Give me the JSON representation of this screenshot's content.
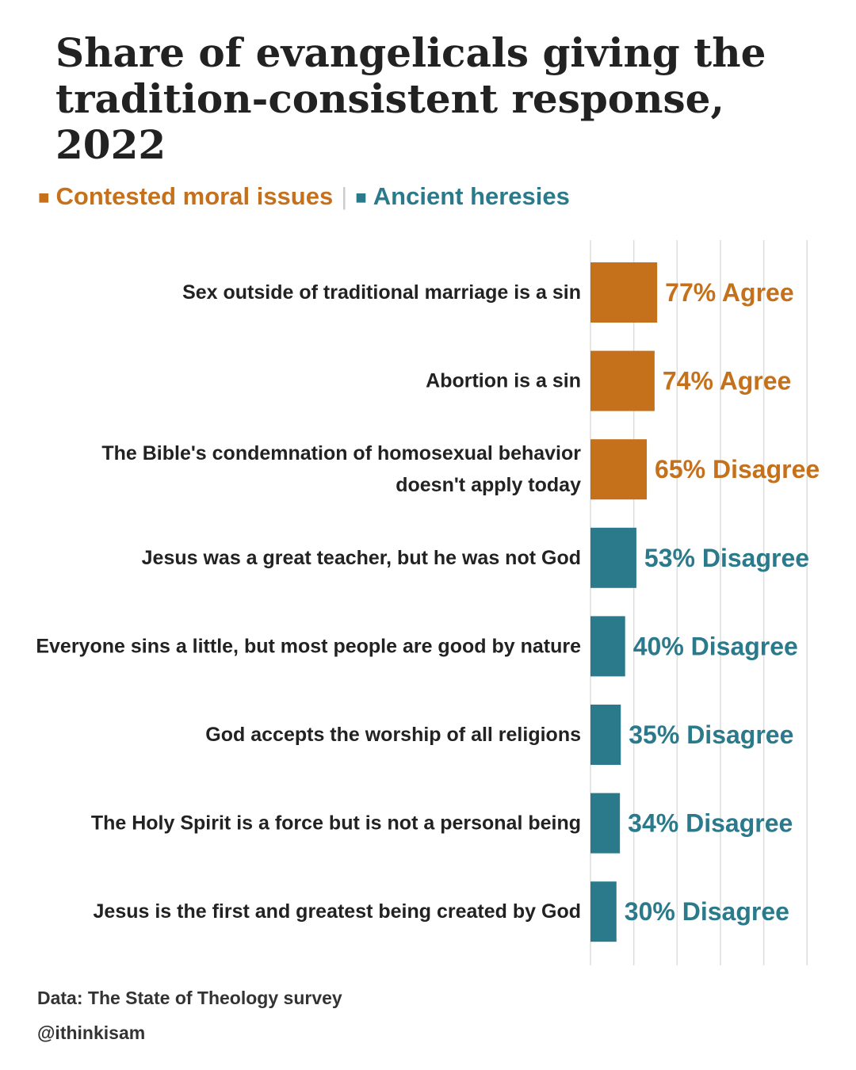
{
  "chart_data": {
    "type": "bar",
    "orientation": "horizontal",
    "title": "Share of evangelicals giving the tradition-consistent response, 2022",
    "categories": [
      "Sex outside of traditional marriage is a sin",
      "Abortion is a sin",
      "The Bible's condemnation of homosexual behavior doesn't apply today",
      "Jesus was a great teacher, but he was not God",
      "Everyone sins a little, but most people are good by nature",
      "God accepts the worship of all religions",
      "The Holy Spirit is a force but is not a personal being",
      "Jesus is the first and greatest being created by God"
    ],
    "category_lines": [
      [
        "Sex outside of traditional marriage is a sin"
      ],
      [
        "Abortion is a sin"
      ],
      [
        "The Bible's condemnation of homosexual behavior",
        "doesn't apply today"
      ],
      [
        "Jesus was a great teacher, but he was not God"
      ],
      [
        "Everyone sins a little, but most people are good by nature"
      ],
      [
        "God accepts the worship of all religions"
      ],
      [
        "The Holy Spirit is a force but is not a personal being"
      ],
      [
        "Jesus is the first and greatest being created by God"
      ]
    ],
    "values": [
      77,
      74,
      65,
      53,
      40,
      35,
      34,
      30
    ],
    "groups": [
      "moral",
      "moral",
      "moral",
      "heresy",
      "heresy",
      "heresy",
      "heresy",
      "heresy"
    ],
    "data_labels": [
      "77% Agree",
      "74% Agree",
      "65% Disagree",
      "53% Disagree",
      "40% Disagree",
      "35% Disagree",
      "34% Disagree",
      "30% Disagree"
    ],
    "legend": [
      {
        "key": "moral",
        "name": "Contested moral issues",
        "color": "#c5711c"
      },
      {
        "key": "heresy",
        "name": "Ancient heresies",
        "color": "#2b7a8b"
      }
    ],
    "legend_position": "top-left",
    "legend_marker": "■",
    "legend_separator": "|",
    "xlim": [
      0,
      250
    ],
    "grid": true,
    "grid_step": 50,
    "grid_color": "#dddddd",
    "xlabel": "",
    "ylabel": ""
  },
  "footer": {
    "source": "Data: The State of Theology survey",
    "credit": "@ithinkisam"
  }
}
